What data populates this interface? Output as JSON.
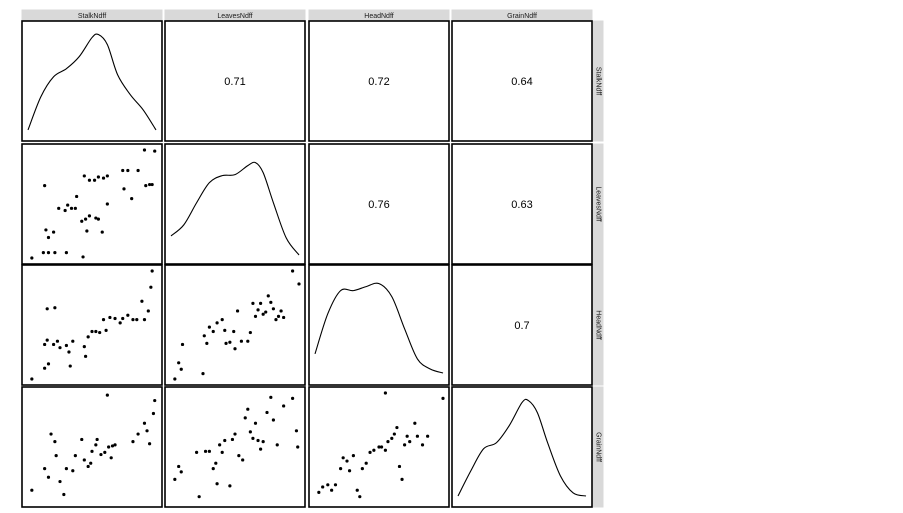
{
  "chart_data": {
    "type": "scatter",
    "variables": [
      "StalkNdff",
      "LeavesNdff",
      "HeadNdff",
      "GrainNdff"
    ],
    "correlations": [
      {
        "row": "StalkNdff",
        "col": "LeavesNdff",
        "label": "0.71"
      },
      {
        "row": "StalkNdff",
        "col": "HeadNdff",
        "label": "0.72"
      },
      {
        "row": "StalkNdff",
        "col": "GrainNdff",
        "label": "0.64"
      },
      {
        "row": "LeavesNdff",
        "col": "HeadNdff",
        "label": "0.76"
      },
      {
        "row": "LeavesNdff",
        "col": "GrainNdff",
        "label": "0.63"
      },
      {
        "row": "HeadNdff",
        "col": "GrainNdff",
        "label": "0.7"
      }
    ],
    "densities": {
      "StalkNdff": [
        [
          0.0,
          0.05
        ],
        [
          0.1,
          0.38
        ],
        [
          0.2,
          0.58
        ],
        [
          0.3,
          0.66
        ],
        [
          0.4,
          0.78
        ],
        [
          0.5,
          0.97
        ],
        [
          0.55,
          1.0
        ],
        [
          0.62,
          0.9
        ],
        [
          0.7,
          0.6
        ],
        [
          0.8,
          0.4
        ],
        [
          0.9,
          0.25
        ],
        [
          1.0,
          0.05
        ]
      ],
      "LeavesNdff": [
        [
          0.0,
          0.22
        ],
        [
          0.1,
          0.33
        ],
        [
          0.2,
          0.55
        ],
        [
          0.3,
          0.75
        ],
        [
          0.4,
          0.82
        ],
        [
          0.5,
          0.83
        ],
        [
          0.6,
          0.92
        ],
        [
          0.66,
          0.95
        ],
        [
          0.72,
          0.85
        ],
        [
          0.8,
          0.55
        ],
        [
          0.9,
          0.2
        ],
        [
          1.0,
          0.03
        ]
      ],
      "HeadNdff": [
        [
          0.0,
          0.25
        ],
        [
          0.1,
          0.65
        ],
        [
          0.2,
          0.88
        ],
        [
          0.3,
          0.88
        ],
        [
          0.4,
          0.92
        ],
        [
          0.5,
          0.95
        ],
        [
          0.6,
          0.82
        ],
        [
          0.7,
          0.5
        ],
        [
          0.8,
          0.2
        ],
        [
          0.9,
          0.1
        ],
        [
          1.0,
          0.06
        ]
      ],
      "GrainNdff": [
        [
          0.0,
          0.05
        ],
        [
          0.1,
          0.3
        ],
        [
          0.2,
          0.52
        ],
        [
          0.3,
          0.58
        ],
        [
          0.4,
          0.75
        ],
        [
          0.5,
          0.98
        ],
        [
          0.55,
          1.0
        ],
        [
          0.62,
          0.88
        ],
        [
          0.7,
          0.58
        ],
        [
          0.8,
          0.25
        ],
        [
          0.9,
          0.08
        ],
        [
          1.0,
          0.05
        ]
      ]
    },
    "scatter": {
      "LeavesNdff~StalkNdff": [
        [
          0.03,
          0.0
        ],
        [
          0.12,
          0.05
        ],
        [
          0.16,
          0.05
        ],
        [
          0.21,
          0.05
        ],
        [
          0.16,
          0.19
        ],
        [
          0.3,
          0.05
        ],
        [
          0.43,
          0.01
        ],
        [
          0.14,
          0.26
        ],
        [
          0.2,
          0.24
        ],
        [
          0.13,
          0.67
        ],
        [
          0.24,
          0.46
        ],
        [
          0.34,
          0.46
        ],
        [
          0.37,
          0.46
        ],
        [
          0.29,
          0.44
        ],
        [
          0.31,
          0.49
        ],
        [
          0.38,
          0.57
        ],
        [
          0.42,
          0.34
        ],
        [
          0.45,
          0.36
        ],
        [
          0.46,
          0.25
        ],
        [
          0.48,
          0.39
        ],
        [
          0.53,
          0.37
        ],
        [
          0.55,
          0.36
        ],
        [
          0.58,
          0.24
        ],
        [
          0.62,
          0.5
        ],
        [
          0.44,
          0.76
        ],
        [
          0.48,
          0.72
        ],
        [
          0.52,
          0.72
        ],
        [
          0.55,
          0.75
        ],
        [
          0.59,
          0.74
        ],
        [
          0.62,
          0.76
        ],
        [
          0.75,
          0.64
        ],
        [
          0.74,
          0.81
        ],
        [
          0.78,
          0.81
        ],
        [
          0.81,
          0.55
        ],
        [
          0.86,
          0.81
        ],
        [
          0.92,
          0.67
        ],
        [
          0.95,
          0.68
        ],
        [
          0.97,
          0.68
        ],
        [
          0.91,
          1.0
        ],
        [
          0.99,
          0.99
        ]
      ],
      "HeadNdff~StalkNdff": [
        [
          0.03,
          0.0
        ],
        [
          0.13,
          0.1
        ],
        [
          0.16,
          0.14
        ],
        [
          0.13,
          0.32
        ],
        [
          0.15,
          0.36
        ],
        [
          0.2,
          0.32
        ],
        [
          0.23,
          0.35
        ],
        [
          0.25,
          0.29
        ],
        [
          0.3,
          0.31
        ],
        [
          0.32,
          0.25
        ],
        [
          0.33,
          0.12
        ],
        [
          0.35,
          0.35
        ],
        [
          0.15,
          0.65
        ],
        [
          0.21,
          0.66
        ],
        [
          0.45,
          0.21
        ],
        [
          0.44,
          0.3
        ],
        [
          0.47,
          0.39
        ],
        [
          0.5,
          0.44
        ],
        [
          0.53,
          0.44
        ],
        [
          0.56,
          0.43
        ],
        [
          0.59,
          0.55
        ],
        [
          0.61,
          0.45
        ],
        [
          0.64,
          0.57
        ],
        [
          0.68,
          0.56
        ],
        [
          0.72,
          0.52
        ],
        [
          0.74,
          0.56
        ],
        [
          0.78,
          0.59
        ],
        [
          0.82,
          0.55
        ],
        [
          0.85,
          0.55
        ],
        [
          0.89,
          0.72
        ],
        [
          0.91,
          0.55
        ],
        [
          0.94,
          0.63
        ],
        [
          0.96,
          0.85
        ],
        [
          0.97,
          1.0
        ]
      ],
      "HeadNdff~LeavesNdff": [
        [
          0.03,
          0.0
        ],
        [
          0.06,
          0.15
        ],
        [
          0.08,
          0.09
        ],
        [
          0.09,
          0.32
        ],
        [
          0.25,
          0.05
        ],
        [
          0.26,
          0.4
        ],
        [
          0.28,
          0.33
        ],
        [
          0.3,
          0.48
        ],
        [
          0.33,
          0.44
        ],
        [
          0.36,
          0.52
        ],
        [
          0.4,
          0.55
        ],
        [
          0.42,
          0.45
        ],
        [
          0.43,
          0.33
        ],
        [
          0.46,
          0.34
        ],
        [
          0.49,
          0.44
        ],
        [
          0.5,
          0.28
        ],
        [
          0.52,
          0.63
        ],
        [
          0.55,
          0.35
        ],
        [
          0.6,
          0.35
        ],
        [
          0.62,
          0.43
        ],
        [
          0.64,
          0.7
        ],
        [
          0.66,
          0.58
        ],
        [
          0.68,
          0.64
        ],
        [
          0.7,
          0.7
        ],
        [
          0.72,
          0.6
        ],
        [
          0.74,
          0.62
        ],
        [
          0.76,
          0.77
        ],
        [
          0.78,
          0.71
        ],
        [
          0.8,
          0.65
        ],
        [
          0.82,
          0.55
        ],
        [
          0.84,
          0.58
        ],
        [
          0.86,
          0.63
        ],
        [
          0.88,
          0.57
        ],
        [
          0.95,
          1.0
        ],
        [
          1.0,
          0.88
        ]
      ],
      "GrainNdff~StalkNdff": [
        [
          0.03,
          0.1
        ],
        [
          0.13,
          0.3
        ],
        [
          0.16,
          0.22
        ],
        [
          0.18,
          0.62
        ],
        [
          0.21,
          0.55
        ],
        [
          0.22,
          0.42
        ],
        [
          0.25,
          0.18
        ],
        [
          0.28,
          0.06
        ],
        [
          0.3,
          0.3
        ],
        [
          0.35,
          0.28
        ],
        [
          0.37,
          0.42
        ],
        [
          0.42,
          0.57
        ],
        [
          0.44,
          0.38
        ],
        [
          0.47,
          0.32
        ],
        [
          0.49,
          0.35
        ],
        [
          0.5,
          0.46
        ],
        [
          0.53,
          0.52
        ],
        [
          0.54,
          0.57
        ],
        [
          0.57,
          0.43
        ],
        [
          0.6,
          0.45
        ],
        [
          0.63,
          0.5
        ],
        [
          0.65,
          0.4
        ],
        [
          0.66,
          0.51
        ],
        [
          0.68,
          0.52
        ],
        [
          0.62,
          0.98
        ],
        [
          0.86,
          0.62
        ],
        [
          0.91,
          0.72
        ],
        [
          0.93,
          0.65
        ],
        [
          0.95,
          0.53
        ],
        [
          0.98,
          0.81
        ],
        [
          0.99,
          0.93
        ],
        [
          0.82,
          0.55
        ]
      ],
      "GrainNdff~LeavesNdff": [
        [
          0.03,
          0.2
        ],
        [
          0.06,
          0.32
        ],
        [
          0.08,
          0.27
        ],
        [
          0.2,
          0.45
        ],
        [
          0.22,
          0.04
        ],
        [
          0.27,
          0.46
        ],
        [
          0.3,
          0.46
        ],
        [
          0.33,
          0.3
        ],
        [
          0.35,
          0.35
        ],
        [
          0.36,
          0.16
        ],
        [
          0.38,
          0.52
        ],
        [
          0.4,
          0.45
        ],
        [
          0.42,
          0.56
        ],
        [
          0.46,
          0.14
        ],
        [
          0.48,
          0.57
        ],
        [
          0.5,
          0.62
        ],
        [
          0.53,
          0.42
        ],
        [
          0.56,
          0.38
        ],
        [
          0.58,
          0.77
        ],
        [
          0.6,
          0.85
        ],
        [
          0.62,
          0.64
        ],
        [
          0.64,
          0.58
        ],
        [
          0.66,
          0.72
        ],
        [
          0.68,
          0.56
        ],
        [
          0.7,
          0.48
        ],
        [
          0.72,
          0.55
        ],
        [
          0.75,
          0.82
        ],
        [
          0.78,
          0.96
        ],
        [
          0.8,
          0.75
        ],
        [
          0.83,
          0.52
        ],
        [
          0.88,
          0.88
        ],
        [
          0.95,
          0.95
        ],
        [
          0.99,
          0.5
        ],
        [
          0.98,
          0.65
        ]
      ],
      "GrainNdff~HeadNdff": [
        [
          0.03,
          0.08
        ],
        [
          0.06,
          0.13
        ],
        [
          0.1,
          0.15
        ],
        [
          0.13,
          0.1
        ],
        [
          0.16,
          0.15
        ],
        [
          0.2,
          0.3
        ],
        [
          0.22,
          0.4
        ],
        [
          0.25,
          0.37
        ],
        [
          0.27,
          0.28
        ],
        [
          0.3,
          0.42
        ],
        [
          0.33,
          0.1
        ],
        [
          0.35,
          0.04
        ],
        [
          0.37,
          0.3
        ],
        [
          0.4,
          0.35
        ],
        [
          0.43,
          0.45
        ],
        [
          0.46,
          0.47
        ],
        [
          0.5,
          0.5
        ],
        [
          0.52,
          0.5
        ],
        [
          0.55,
          0.47
        ],
        [
          0.57,
          0.55
        ],
        [
          0.6,
          0.58
        ],
        [
          0.62,
          0.62
        ],
        [
          0.64,
          0.68
        ],
        [
          0.66,
          0.32
        ],
        [
          0.68,
          0.2
        ],
        [
          0.7,
          0.52
        ],
        [
          0.72,
          0.6
        ],
        [
          0.74,
          0.55
        ],
        [
          0.78,
          0.72
        ],
        [
          0.8,
          0.6
        ],
        [
          0.84,
          0.52
        ],
        [
          0.88,
          0.6
        ],
        [
          0.55,
          1.0
        ],
        [
          1.0,
          0.95
        ]
      ]
    },
    "grid": false
  }
}
